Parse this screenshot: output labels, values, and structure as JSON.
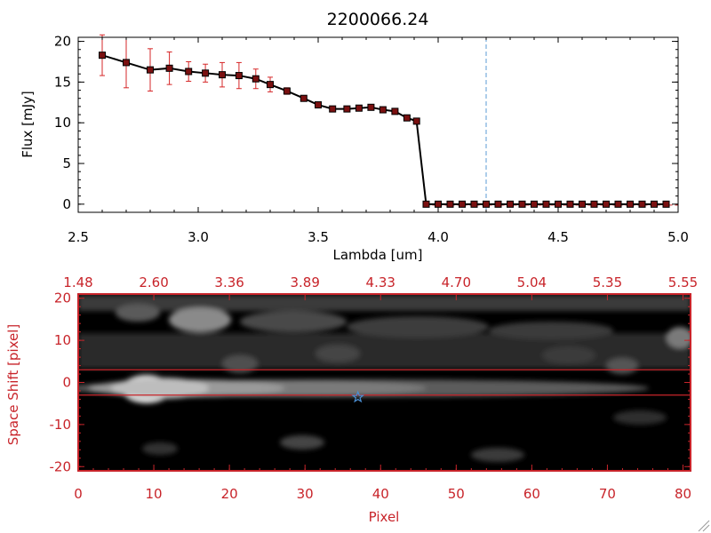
{
  "chart_data": [
    {
      "type": "line",
      "title": "2200066.24",
      "xlabel": "Lambda [um]",
      "ylabel": "Flux [mJy]",
      "xlim": [
        2.5,
        5.0
      ],
      "ylim": [
        -1,
        20.5
      ],
      "x_ticks": [
        2.5,
        3.0,
        3.5,
        4.0,
        4.5,
        5.0
      ],
      "x_tick_labels": [
        "2.5",
        "3.0",
        "3.5",
        "4.0",
        "4.5",
        "5.0"
      ],
      "y_ticks": [
        0,
        5,
        10,
        15,
        20
      ],
      "y_tick_labels": [
        "0",
        "5",
        "10",
        "15",
        "20"
      ],
      "marker_line": {
        "x": 4.2,
        "color": "#5b9bd5",
        "style": "dashed"
      },
      "series": [
        {
          "color": "#000000",
          "error_color": "#d62728",
          "marker_color": "#7a1010",
          "x": [
            2.6,
            2.7,
            2.8,
            2.88,
            2.96,
            3.03,
            3.1,
            3.17,
            3.24,
            3.3,
            3.37,
            3.44,
            3.5,
            3.56,
            3.62,
            3.67,
            3.72,
            3.77,
            3.82,
            3.87,
            3.91,
            3.95,
            4.0,
            4.05,
            4.1,
            4.15,
            4.2,
            4.25,
            4.3,
            4.35,
            4.4,
            4.45,
            4.5,
            4.55,
            4.6,
            4.65,
            4.7,
            4.75,
            4.8,
            4.85,
            4.9,
            4.95
          ],
          "y": [
            18.3,
            17.4,
            16.5,
            16.7,
            16.3,
            16.1,
            15.9,
            15.8,
            15.4,
            14.7,
            13.9,
            13.0,
            12.2,
            11.7,
            11.7,
            11.8,
            11.9,
            11.6,
            11.4,
            10.6,
            10.2,
            0,
            0,
            0,
            0,
            0,
            0,
            0,
            0,
            0,
            0,
            0,
            0,
            0,
            0,
            0,
            0,
            0,
            0,
            0,
            0,
            0
          ],
          "err": [
            2.5,
            3.1,
            2.6,
            2.0,
            1.2,
            1.1,
            1.5,
            1.6,
            1.2,
            0.9,
            0.4,
            0.3,
            0.3,
            0.3,
            0.3,
            0.3,
            0.3,
            0.3,
            0.3,
            0.3,
            0.3,
            0,
            0,
            0,
            0,
            0,
            0,
            0,
            0,
            0,
            0,
            0,
            0,
            0,
            0,
            0,
            0,
            0,
            0,
            0,
            0,
            0
          ]
        }
      ]
    },
    {
      "type": "heatmap",
      "xlabel": "Pixel",
      "ylabel": "Space Shift [pixel]",
      "xlim": [
        0,
        81
      ],
      "ylim": [
        -21,
        21
      ],
      "x_ticks": [
        0,
        10,
        20,
        30,
        40,
        50,
        60,
        70,
        80
      ],
      "x_tick_labels": [
        "0",
        "10",
        "20",
        "30",
        "40",
        "50",
        "60",
        "70",
        "80"
      ],
      "y_ticks": [
        -20,
        -10,
        0,
        10,
        20
      ],
      "y_tick_labels": [
        "-20",
        "-10",
        "0",
        "10",
        "20"
      ],
      "top_axis_labels": [
        "1.48",
        "2.60",
        "3.36",
        "3.89",
        "4.33",
        "4.70",
        "5.04",
        "5.35",
        "5.55"
      ],
      "axis_color": "#c8242a",
      "extraction_lines_y": [
        3,
        -3
      ],
      "star_marker": {
        "x": 37,
        "y": -3.5,
        "color": "#4a8fd4"
      },
      "colormap": "gray"
    }
  ]
}
